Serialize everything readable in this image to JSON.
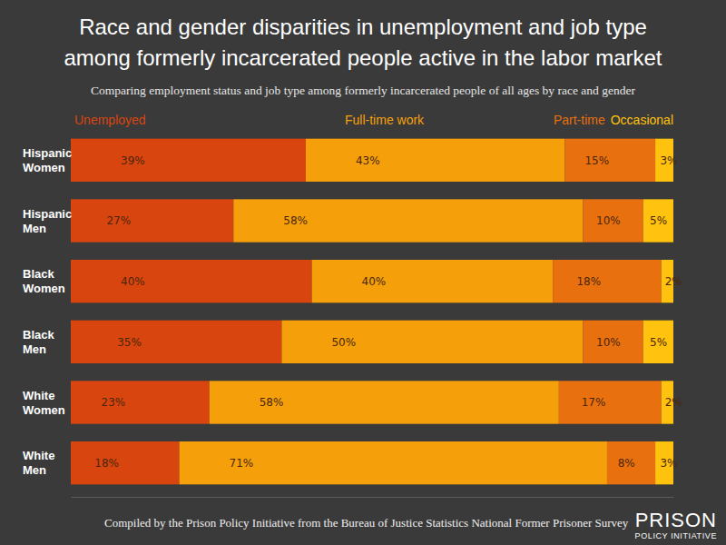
{
  "chart_data": {
    "type": "bar",
    "title": "Race and gender disparities in unemployment and job type among formerly incarcerated people active in the labor market",
    "subtitle": "Comparing employment status and job type among formerly incarcerated people of all ages by race and gender",
    "orientation": "horizontal",
    "stacked": true,
    "data_labels": true,
    "legend": "top",
    "tick_labels": "y",
    "xlim": [
      0,
      100
    ],
    "categories": [
      "Hispanic Women",
      "Hispanic Men",
      "Black Women",
      "Black Men",
      "White Women",
      "White Men"
    ],
    "series": [
      {
        "name": "Unemployed",
        "color": "#d9450f",
        "values": [
          39,
          27,
          40,
          35,
          23,
          18
        ],
        "value_labels": [
          "39%",
          "27%",
          "40%",
          "35%",
          "23%",
          "18%"
        ]
      },
      {
        "name": "Full-time work",
        "color": "#f5a00b",
        "values": [
          43,
          58,
          40,
          50,
          58,
          71
        ],
        "value_labels": [
          "43%",
          "58%",
          "40%",
          "50%",
          "58%",
          "71%"
        ]
      },
      {
        "name": "Part-time",
        "color": "#e9700f",
        "values": [
          15,
          10,
          18,
          10,
          17,
          8
        ],
        "value_labels": [
          "15%",
          "10%",
          "18%",
          "10%",
          "17%",
          "8%"
        ]
      },
      {
        "name": "Occasional",
        "color": "#ffc20e",
        "values": [
          3,
          5,
          2,
          5,
          2,
          3
        ],
        "value_labels": [
          "3%",
          "5%",
          "2%",
          "5%",
          "2%",
          "3%"
        ]
      }
    ],
    "annotations": [
      "Compiled by the Prison Policy Initiative from the Bureau of Justice Statistics National Former Prisoner Survey",
      "PRISON",
      "POLICY INITIATIVE"
    ]
  }
}
